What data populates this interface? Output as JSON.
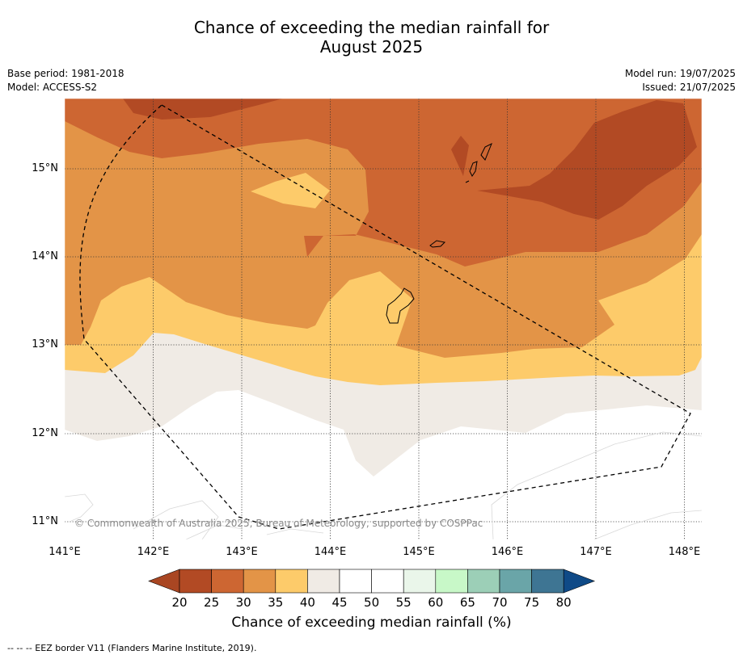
{
  "title": "Chance of exceeding the median rainfall for",
  "subtitle": "August 2025",
  "meta_left": [
    "Base period: 1981-2018",
    "Model: ACCESS-S2"
  ],
  "meta_right": [
    "Model run: 19/07/2025",
    "Issued: 21/07/2025"
  ],
  "lat_labels": [
    "15°N",
    "14°N",
    "13°N",
    "12°N",
    "11°N"
  ],
  "lon_labels": [
    "141°E",
    "142°E",
    "143°E",
    "144°E",
    "145°E",
    "146°E",
    "147°E",
    "148°E"
  ],
  "copyright": "© Commonwealth of Australia 2025, Bureau of Meteorology, supported by COSPPac",
  "colorbar": {
    "ticks": [
      "20",
      "25",
      "30",
      "35",
      "40",
      "45",
      "50",
      "55",
      "60",
      "65",
      "70",
      "75",
      "80"
    ],
    "colors": [
      "#a94622",
      "#b24a24",
      "#cd6632",
      "#e39447",
      "#fdcb6a",
      "#f0ebe5",
      "#ffffff",
      "#ffffff",
      "#eaf6ea",
      "#c8f8c8",
      "#9ccfb7",
      "#6aa5a8",
      "#3e7593",
      "#0f4a87"
    ],
    "label": "Chance of exceeding median rainfall (%)"
  },
  "footnote": "--  --  -- EEZ border V11 (Flanders Marine Institute, 2019)."
}
